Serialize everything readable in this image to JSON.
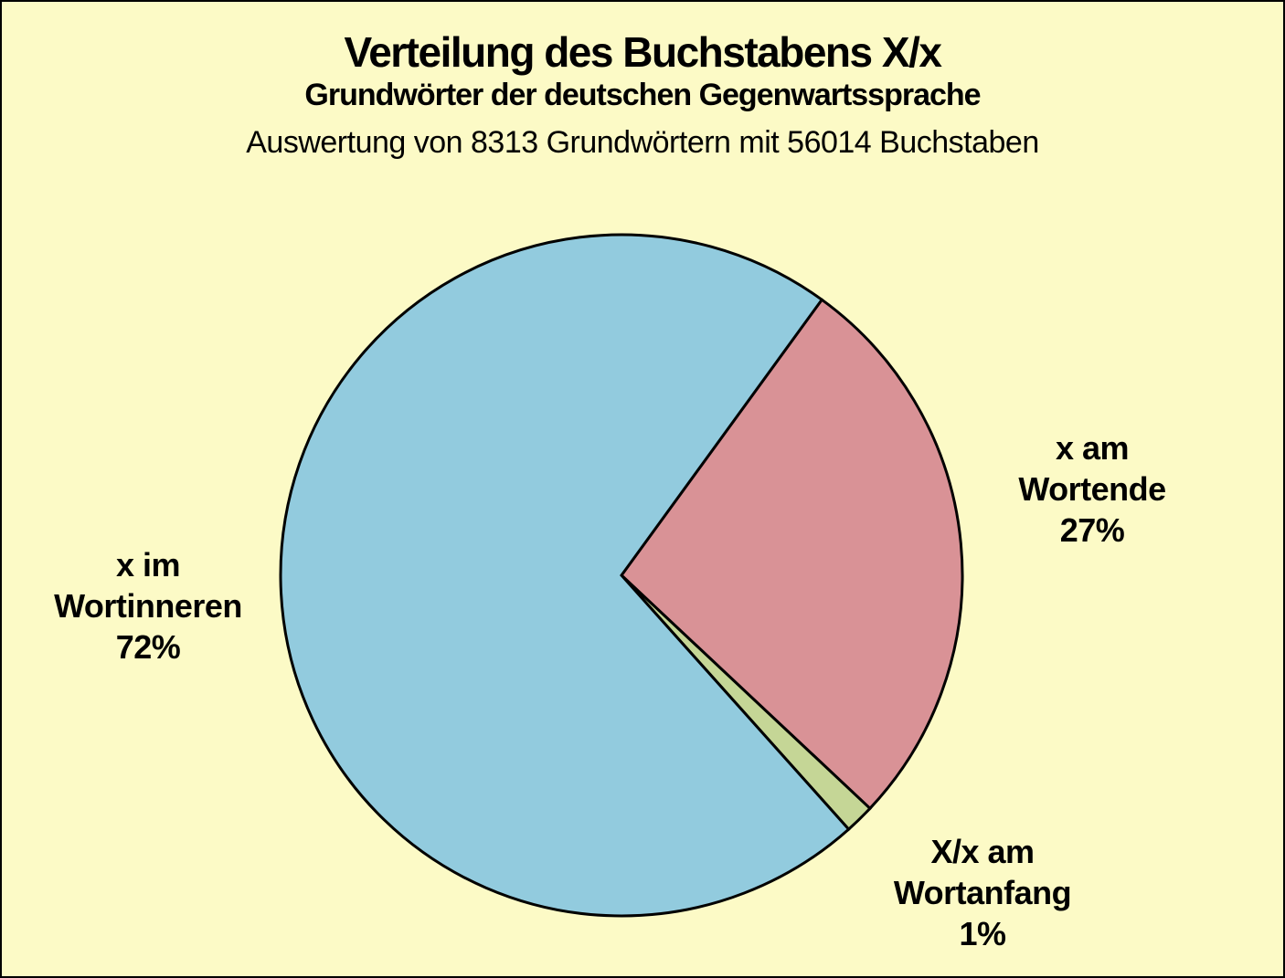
{
  "header": {
    "title": "Verteilung des Buchstabens X/x",
    "subtitle": "Grundwörter der deutschen Gegenwartssprache",
    "caption": "Auswertung von 8313 Grundwörtern mit 56014 Buchstaben"
  },
  "colors": {
    "background": "#FCFAC6",
    "frame": "#000000",
    "slice_stroke": "#000000",
    "text": "#000000",
    "wortende_pink": "#D99296",
    "wortanfang_green": "#C5D696",
    "wortinneren_blue": "#92CBDE"
  },
  "chart_data": {
    "type": "pie",
    "title": "Verteilung des Buchstabens X/x",
    "subtitle": "Grundwörter der deutschen Gegenwartssprache",
    "caption": "Auswertung von 8313 Grundwörtern mit 56014 Buchstaben",
    "words_analyzed": 8313,
    "letters_analyzed": 56014,
    "legend": "none",
    "direction": "clockwise",
    "start_angle_deg": 54,
    "slices": [
      {
        "id": "wortende",
        "label": "x am Wortende",
        "pct": 27,
        "color": "#D99296",
        "sweep_deg": 97.2,
        "annotation": "x am\nWortende\n27%"
      },
      {
        "id": "wortanfang",
        "label": "X/x am Wortanfang",
        "pct": 1,
        "color": "#C5D696",
        "sweep_deg": 5.0,
        "annotation": "X/x am\nWortanfang\n1%"
      },
      {
        "id": "wortinneren",
        "label": "x im Wortinneren",
        "pct": 72,
        "color": "#92CBDE",
        "sweep_deg": 257.8,
        "annotation": "x im\nWortinneren\n72%"
      }
    ]
  }
}
